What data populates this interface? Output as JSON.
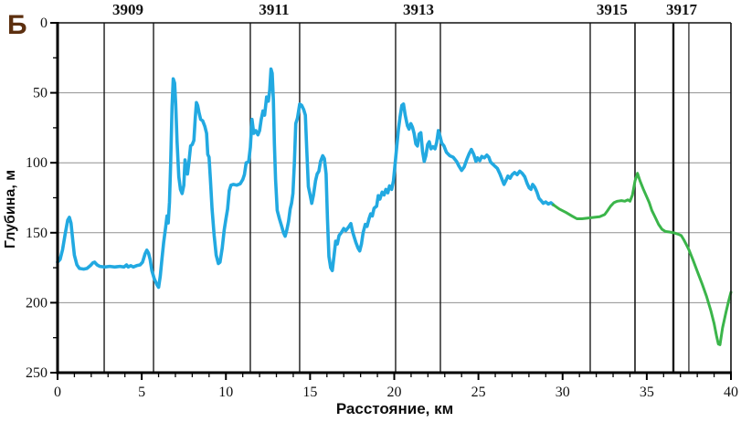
{
  "chart_data": {
    "type": "line",
    "figure_label": "Б",
    "xlabel": "Расстояние, км",
    "ylabel": "Глубина, м",
    "x_range": [
      0,
      40
    ],
    "y_range": [
      0,
      250
    ],
    "y_axis_inverted_depth": true,
    "x_major_ticks": [
      0,
      5,
      10,
      15,
      20,
      25,
      30,
      35,
      40
    ],
    "x_minor_step": 1,
    "y_major_ticks": [
      0,
      50,
      100,
      150,
      200,
      250
    ],
    "y_minor_step": 25,
    "grid_depths": [
      50,
      100,
      150,
      200
    ],
    "grid_color": "#909090",
    "stations": [
      {
        "label": "3909",
        "x_km": 4.18
      },
      {
        "label": "3911",
        "x_km": 12.86
      },
      {
        "label": "3913",
        "x_km": 21.44
      },
      {
        "label": "3915",
        "x_km": 32.94
      },
      {
        "label": "3917",
        "x_km": 37.07
      }
    ],
    "station_lines": [
      {
        "x_km": 2.77,
        "weight": 1.4
      },
      {
        "x_km": 5.7,
        "weight": 1.4
      },
      {
        "x_km": 11.45,
        "weight": 1.4
      },
      {
        "x_km": 14.38,
        "weight": 1.4
      },
      {
        "x_km": 20.08,
        "weight": 1.4
      },
      {
        "x_km": 22.74,
        "weight": 1.4
      },
      {
        "x_km": 31.64,
        "weight": 1.4
      },
      {
        "x_km": 34.3,
        "weight": 1.6
      },
      {
        "x_km": 36.58,
        "weight": 2.4
      },
      {
        "x_km": 37.5,
        "weight": 1.2
      }
    ],
    "series": [
      {
        "name": "measured-depth-profile",
        "color": "#22a9e1",
        "width": 3.6,
        "points": [
          [
            0,
            171
          ],
          [
            0.15,
            169
          ],
          [
            0.3,
            162
          ],
          [
            0.45,
            151
          ],
          [
            0.6,
            141
          ],
          [
            0.7,
            139
          ],
          [
            0.8,
            143
          ],
          [
            0.9,
            155
          ],
          [
            1.0,
            166
          ],
          [
            1.15,
            173
          ],
          [
            1.3,
            175.5
          ],
          [
            1.55,
            176
          ],
          [
            1.75,
            175.5
          ],
          [
            1.95,
            173.5
          ],
          [
            2.1,
            171.5
          ],
          [
            2.2,
            171
          ],
          [
            2.35,
            173
          ],
          [
            2.5,
            174
          ],
          [
            2.8,
            174.5
          ],
          [
            3.1,
            174
          ],
          [
            3.4,
            174.5
          ],
          [
            3.7,
            174
          ],
          [
            3.95,
            174.5
          ],
          [
            4.1,
            173
          ],
          [
            4.2,
            174.5
          ],
          [
            4.35,
            173.5
          ],
          [
            4.5,
            174.5
          ],
          [
            4.7,
            173.5
          ],
          [
            4.9,
            173
          ],
          [
            5.05,
            171
          ],
          [
            5.2,
            165
          ],
          [
            5.3,
            162.5
          ],
          [
            5.4,
            164.5
          ],
          [
            5.5,
            169
          ],
          [
            5.6,
            177
          ],
          [
            5.75,
            183
          ],
          [
            5.9,
            187
          ],
          [
            6.0,
            189
          ],
          [
            6.1,
            181
          ],
          [
            6.2,
            169
          ],
          [
            6.3,
            157
          ],
          [
            6.42,
            146
          ],
          [
            6.5,
            138
          ],
          [
            6.57,
            143
          ],
          [
            6.65,
            128
          ],
          [
            6.72,
            100
          ],
          [
            6.8,
            60
          ],
          [
            6.87,
            40
          ],
          [
            6.95,
            43
          ],
          [
            7.02,
            58
          ],
          [
            7.1,
            85
          ],
          [
            7.2,
            110
          ],
          [
            7.3,
            119
          ],
          [
            7.4,
            122
          ],
          [
            7.5,
            116
          ],
          [
            7.57,
            98
          ],
          [
            7.65,
            104
          ],
          [
            7.72,
            108
          ],
          [
            7.8,
            100
          ],
          [
            7.9,
            88
          ],
          [
            8.0,
            87
          ],
          [
            8.1,
            84
          ],
          [
            8.18,
            68
          ],
          [
            8.25,
            57
          ],
          [
            8.32,
            59
          ],
          [
            8.4,
            64
          ],
          [
            8.5,
            69
          ],
          [
            8.62,
            70
          ],
          [
            8.75,
            74
          ],
          [
            8.85,
            79
          ],
          [
            8.92,
            94
          ],
          [
            9.0,
            96
          ],
          [
            9.08,
            112
          ],
          [
            9.18,
            133
          ],
          [
            9.3,
            152
          ],
          [
            9.42,
            166
          ],
          [
            9.55,
            172
          ],
          [
            9.65,
            171
          ],
          [
            9.78,
            161
          ],
          [
            9.9,
            148
          ],
          [
            10.0,
            140
          ],
          [
            10.1,
            133
          ],
          [
            10.2,
            120
          ],
          [
            10.3,
            116
          ],
          [
            10.45,
            115.5
          ],
          [
            10.65,
            116
          ],
          [
            10.85,
            115
          ],
          [
            11.0,
            112
          ],
          [
            11.1,
            108.5
          ],
          [
            11.2,
            100
          ],
          [
            11.35,
            99.5
          ],
          [
            11.45,
            89
          ],
          [
            11.55,
            69
          ],
          [
            11.65,
            79
          ],
          [
            11.78,
            77
          ],
          [
            11.9,
            80
          ],
          [
            12.0,
            77
          ],
          [
            12.1,
            69
          ],
          [
            12.2,
            63
          ],
          [
            12.3,
            66
          ],
          [
            12.42,
            53
          ],
          [
            12.52,
            56
          ],
          [
            12.6,
            48
          ],
          [
            12.68,
            33
          ],
          [
            12.75,
            36
          ],
          [
            12.82,
            55
          ],
          [
            12.88,
            86
          ],
          [
            12.95,
            112
          ],
          [
            13.05,
            134
          ],
          [
            13.18,
            140
          ],
          [
            13.3,
            145
          ],
          [
            13.42,
            150
          ],
          [
            13.52,
            152.5
          ],
          [
            13.62,
            148
          ],
          [
            13.72,
            142
          ],
          [
            13.82,
            133
          ],
          [
            13.9,
            129
          ],
          [
            13.98,
            122
          ],
          [
            14.07,
            100
          ],
          [
            14.15,
            72
          ],
          [
            14.25,
            68
          ],
          [
            14.38,
            58
          ],
          [
            14.5,
            59
          ],
          [
            14.62,
            62
          ],
          [
            14.72,
            66
          ],
          [
            14.8,
            90
          ],
          [
            14.9,
            117
          ],
          [
            15.0,
            123
          ],
          [
            15.1,
            129
          ],
          [
            15.2,
            123
          ],
          [
            15.32,
            113
          ],
          [
            15.42,
            108
          ],
          [
            15.52,
            106
          ],
          [
            15.62,
            99
          ],
          [
            15.75,
            95
          ],
          [
            15.85,
            97
          ],
          [
            15.95,
            108
          ],
          [
            16.03,
            140
          ],
          [
            16.12,
            167
          ],
          [
            16.22,
            175
          ],
          [
            16.32,
            177
          ],
          [
            16.42,
            167
          ],
          [
            16.52,
            156
          ],
          [
            16.62,
            158
          ],
          [
            16.72,
            152
          ],
          [
            16.85,
            150
          ],
          [
            17.0,
            147
          ],
          [
            17.12,
            148.5
          ],
          [
            17.28,
            146
          ],
          [
            17.42,
            143.5
          ],
          [
            17.52,
            149
          ],
          [
            17.62,
            153
          ],
          [
            17.72,
            157
          ],
          [
            17.85,
            161
          ],
          [
            17.95,
            163
          ],
          [
            18.05,
            158
          ],
          [
            18.15,
            150
          ],
          [
            18.28,
            144
          ],
          [
            18.38,
            145.5
          ],
          [
            18.5,
            140
          ],
          [
            18.6,
            136.5
          ],
          [
            18.7,
            138
          ],
          [
            18.8,
            132.5
          ],
          [
            18.95,
            131
          ],
          [
            19.05,
            123.5
          ],
          [
            19.15,
            126
          ],
          [
            19.28,
            121
          ],
          [
            19.4,
            123
          ],
          [
            19.5,
            119
          ],
          [
            19.62,
            121.5
          ],
          [
            19.72,
            116.5
          ],
          [
            19.85,
            119
          ],
          [
            19.95,
            113
          ],
          [
            20.05,
            101
          ],
          [
            20.15,
            88
          ],
          [
            20.25,
            76
          ],
          [
            20.35,
            67
          ],
          [
            20.45,
            59
          ],
          [
            20.55,
            58
          ],
          [
            20.65,
            66
          ],
          [
            20.78,
            73.5
          ],
          [
            20.88,
            76
          ],
          [
            20.98,
            72
          ],
          [
            21.08,
            74.5
          ],
          [
            21.18,
            79
          ],
          [
            21.28,
            86.5
          ],
          [
            21.38,
            88
          ],
          [
            21.48,
            79.5
          ],
          [
            21.58,
            78.5
          ],
          [
            21.68,
            92
          ],
          [
            21.78,
            99
          ],
          [
            21.88,
            95
          ],
          [
            21.98,
            87
          ],
          [
            22.08,
            85
          ],
          [
            22.18,
            90
          ],
          [
            22.3,
            88.5
          ],
          [
            22.42,
            90
          ],
          [
            22.52,
            85.5
          ],
          [
            22.62,
            77
          ],
          [
            22.72,
            81
          ],
          [
            22.82,
            86
          ],
          [
            22.95,
            88
          ],
          [
            23.1,
            92.5
          ],
          [
            23.3,
            95
          ],
          [
            23.5,
            96
          ],
          [
            23.7,
            99
          ],
          [
            23.85,
            102.5
          ],
          [
            24.0,
            105.5
          ],
          [
            24.15,
            103
          ],
          [
            24.3,
            98
          ],
          [
            24.45,
            93.5
          ],
          [
            24.58,
            90.5
          ],
          [
            24.72,
            94
          ],
          [
            24.85,
            99
          ],
          [
            24.95,
            96.5
          ],
          [
            25.08,
            98.5
          ],
          [
            25.2,
            95.5
          ],
          [
            25.35,
            96.5
          ],
          [
            25.5,
            94.5
          ],
          [
            25.62,
            96
          ],
          [
            25.72,
            99.5
          ],
          [
            25.85,
            101
          ],
          [
            25.98,
            102.5
          ],
          [
            26.12,
            104
          ],
          [
            26.28,
            108
          ],
          [
            26.42,
            112.5
          ],
          [
            26.52,
            115.5
          ],
          [
            26.62,
            113
          ],
          [
            26.75,
            109.5
          ],
          [
            26.88,
            111
          ],
          [
            27.0,
            108.5
          ],
          [
            27.15,
            107
          ],
          [
            27.3,
            108.5
          ],
          [
            27.45,
            106
          ],
          [
            27.6,
            107.5
          ],
          [
            27.75,
            110
          ],
          [
            27.9,
            115
          ],
          [
            28.02,
            118
          ],
          [
            28.12,
            119
          ],
          [
            28.22,
            115.5
          ],
          [
            28.35,
            117.5
          ],
          [
            28.48,
            121
          ],
          [
            28.6,
            125.5
          ],
          [
            28.72,
            127
          ],
          [
            28.85,
            129
          ],
          [
            29.0,
            128
          ],
          [
            29.15,
            129.5
          ],
          [
            29.3,
            128.5
          ],
          [
            29.45,
            130
          ]
        ]
      },
      {
        "name": "extended-depth-profile",
        "color": "#3bb54a",
        "width": 3.0,
        "points": [
          [
            29.45,
            130
          ],
          [
            29.8,
            133
          ],
          [
            30.2,
            135.5
          ],
          [
            30.55,
            138
          ],
          [
            30.85,
            140
          ],
          [
            31.15,
            140
          ],
          [
            31.5,
            139.5
          ],
          [
            31.9,
            139
          ],
          [
            32.2,
            138.5
          ],
          [
            32.5,
            137
          ],
          [
            32.65,
            134.5
          ],
          [
            32.85,
            131
          ],
          [
            33.05,
            128.5
          ],
          [
            33.25,
            127.5
          ],
          [
            33.5,
            127
          ],
          [
            33.7,
            127.5
          ],
          [
            33.88,
            126.5
          ],
          [
            34.0,
            127.5
          ],
          [
            34.15,
            123
          ],
          [
            34.3,
            113
          ],
          [
            34.45,
            107.5
          ],
          [
            34.6,
            113
          ],
          [
            34.8,
            119
          ],
          [
            35.0,
            124.5
          ],
          [
            35.15,
            128.5
          ],
          [
            35.3,
            134
          ],
          [
            35.5,
            139
          ],
          [
            35.7,
            144
          ],
          [
            35.9,
            147.5
          ],
          [
            36.1,
            149
          ],
          [
            36.35,
            149.5
          ],
          [
            36.6,
            150
          ],
          [
            36.85,
            151
          ],
          [
            37.05,
            152
          ],
          [
            37.2,
            155
          ],
          [
            37.35,
            158.5
          ],
          [
            37.5,
            162
          ],
          [
            37.75,
            169.5
          ],
          [
            38.0,
            177.5
          ],
          [
            38.3,
            187
          ],
          [
            38.55,
            195.5
          ],
          [
            38.8,
            205.5
          ],
          [
            39.0,
            215
          ],
          [
            39.15,
            224
          ],
          [
            39.25,
            229.5
          ],
          [
            39.35,
            230
          ],
          [
            39.5,
            218
          ],
          [
            39.7,
            207
          ],
          [
            39.85,
            199.5
          ],
          [
            40.0,
            192.5
          ]
        ]
      }
    ]
  }
}
